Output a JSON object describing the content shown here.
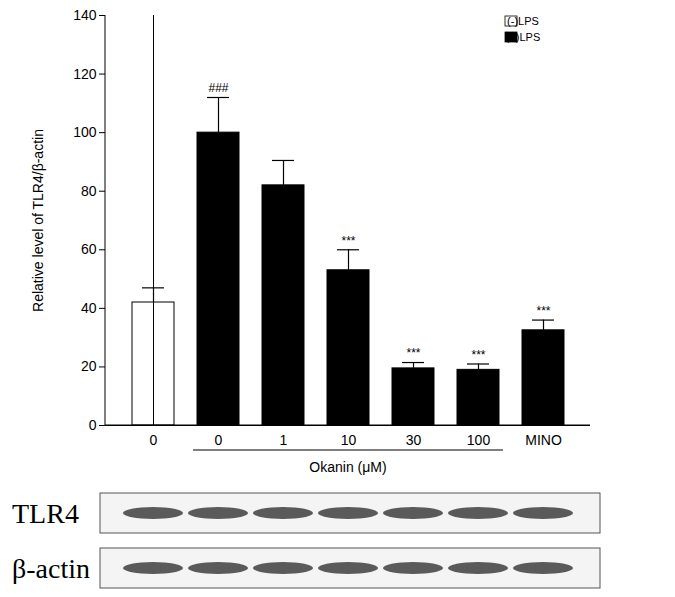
{
  "chart_data": {
    "type": "bar",
    "categories": [
      "0",
      "0",
      "1",
      "10",
      "30",
      "100",
      "MINO"
    ],
    "series": [
      {
        "name": "(-)LPS",
        "color": "#ffffff",
        "values": [
          42,
          null,
          null,
          null,
          null,
          null,
          null
        ],
        "errors": [
          5,
          null,
          null,
          null,
          null,
          null,
          null
        ]
      },
      {
        "name": "(+)LPS",
        "color": "#000000",
        "values": [
          null,
          100,
          82,
          53,
          19.5,
          19,
          32.5
        ],
        "errors": [
          null,
          12,
          8.5,
          7,
          2,
          2,
          3.5
        ]
      }
    ],
    "significance": [
      null,
      "###",
      null,
      "***",
      "***",
      "***",
      "***"
    ],
    "x_label": "Okanin (μM)",
    "x_label_span": [
      1,
      5
    ],
    "y_label": "Relative level of TLR4/β-actin",
    "ylim": [
      0,
      140
    ],
    "yticks": [
      0,
      20,
      40,
      60,
      80,
      100,
      120,
      140
    ],
    "legend": "top-right"
  },
  "blot": {
    "labels": [
      "TLR4",
      "β-actin"
    ]
  }
}
